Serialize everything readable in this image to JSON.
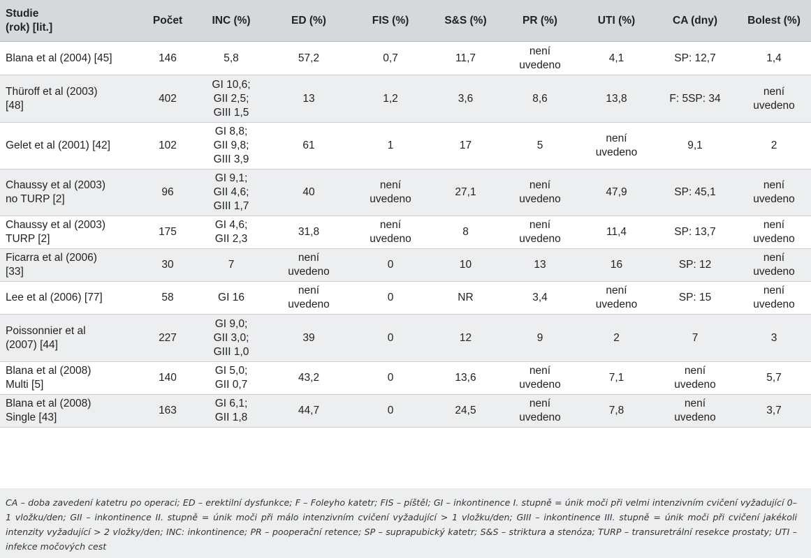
{
  "table": {
    "headers": [
      "Studie\n(rok) [lit.]",
      "Počet",
      "INC (%)",
      "ED (%)",
      "FIS (%)",
      "S&S (%)",
      "PR (%)",
      "UTI (%)",
      "CA (dny)",
      "Bolest (%)"
    ],
    "rows": [
      [
        "Blana et al (2004) [45]",
        "146",
        "5,8",
        "57,2",
        "0,7",
        "11,7",
        "není\nuvedeno",
        "4,1",
        "SP: 12,7",
        "1,4"
      ],
      [
        "Thüroff et al (2003)\n[48]",
        "402",
        "GI 10,6;\nGII 2,5;\nGIII 1,5",
        "13",
        "1,2",
        "3,6",
        "8,6",
        "13,8",
        "F: 5SP: 34",
        "není\nuvedeno"
      ],
      [
        "Gelet et al (2001) [42]",
        "102",
        "GI 8,8;\nGII 9,8;\nGIII 3,9",
        "61",
        "1",
        "17",
        "5",
        "není\nuvedeno",
        "9,1",
        "2"
      ],
      [
        "Chaussy et al (2003)\nno TURP [2]",
        "96",
        "GI 9,1;\nGII 4,6;\nGIII 1,7",
        "40",
        "není\nuvedeno",
        "27,1",
        "není\nuvedeno",
        "47,9",
        "SP: 45,1",
        "není\nuvedeno"
      ],
      [
        "Chaussy et al (2003)\nTURP [2]",
        "175",
        "GI 4,6;\nGII 2,3",
        "31,8",
        "není\nuvedeno",
        "8",
        "není\nuvedeno",
        "11,4",
        "SP: 13,7",
        "není\nuvedeno"
      ],
      [
        "Ficarra et al (2006)\n[33]",
        "30",
        "7",
        "není\nuvedeno",
        "0",
        "10",
        "13",
        "16",
        "SP: 12",
        "není\nuvedeno"
      ],
      [
        "Lee et al (2006) [77]",
        "58",
        "GI 16",
        "není\nuvedeno",
        "0",
        "NR",
        "3,4",
        "není\nuvedeno",
        "SP: 15",
        "není\nuvedeno"
      ],
      [
        "Poissonnier et al\n(2007) [44]",
        "227",
        "GI 9,0;\nGII 3,0;\nGIII 1,0",
        "39",
        "0",
        "12",
        "9",
        "2",
        "7",
        "3"
      ],
      [
        "Blana et al (2008)\nMulti [5]",
        "140",
        "GI 5,0;\nGII 0,7",
        "43,2",
        "0",
        "13,6",
        "není\nuvedeno",
        "7,1",
        "není\nuvedeno",
        "5,7"
      ],
      [
        "Blana et al (2008)\nSingle [43]",
        "163",
        "GI 6,1;\nGII 1,8",
        "44,7",
        "0",
        "24,5",
        "není\nuvedeno",
        "7,8",
        "není\nuvedeno",
        "3,7"
      ]
    ]
  },
  "footnote": "CA – doba zavedení katetru po operaci; ED – erektilní dysfunkce; F – Foleyho katetr; FIS – píštěl; GI – inkontinence I. stupně = únik moči při velmi intenzivním cvičení vyžadující 0–1 vložku/den; GII – inkontinence II. stupně = únik moči při málo intenzivním cvičení vyžadující > 1 vložku/den; GIII – inkontinence III. stupně = únik moči při cvičení jakékoli intenzity vyžadující > 2 vložky/den; INC: inkontinence; PR – pooperační retence; SP – suprapubický katetr; S&S – striktura a stenóza; TURP – transuretrální resekce prostaty; UTI – infekce močových cest"
}
